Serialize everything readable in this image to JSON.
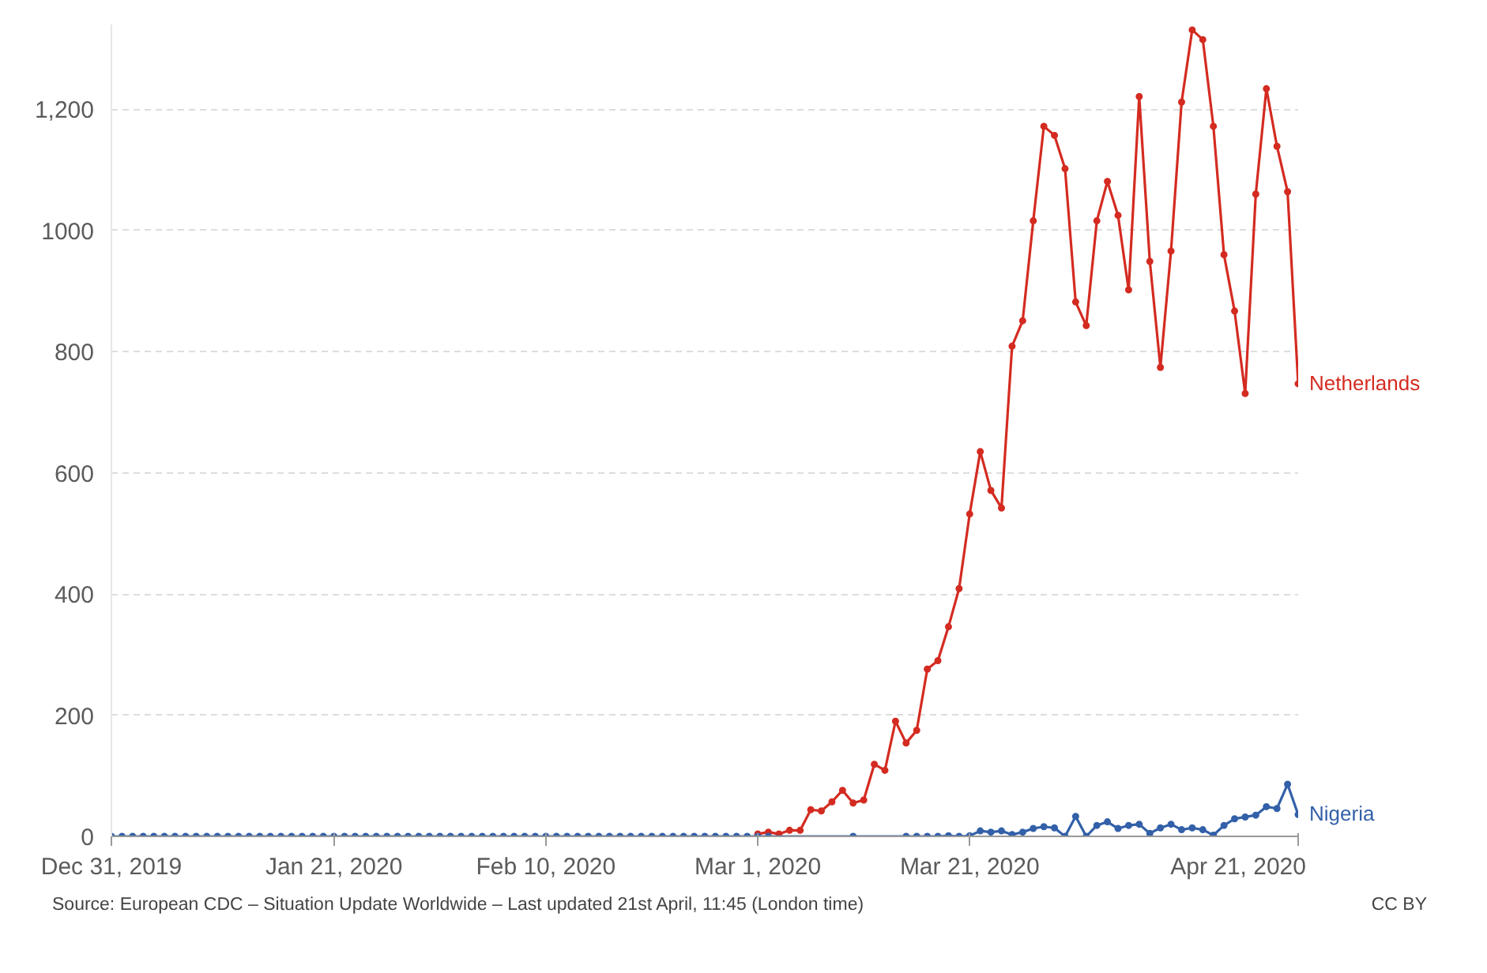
{
  "chart_data": {
    "type": "line",
    "xlim": [
      "2019-12-31",
      "2020-04-21"
    ],
    "ylim": [
      0,
      1340
    ],
    "xticks": [
      {
        "value": "2019-12-31",
        "label": "Dec 31, 2019"
      },
      {
        "value": "2020-01-21",
        "label": "Jan 21, 2020"
      },
      {
        "value": "2020-02-10",
        "label": "Feb 10, 2020"
      },
      {
        "value": "2020-03-01",
        "label": "Mar 1, 2020"
      },
      {
        "value": "2020-03-21",
        "label": "Mar 21, 2020"
      },
      {
        "value": "2020-04-21",
        "label": "Apr 21, 2020"
      }
    ],
    "yticks": [
      0,
      200,
      400,
      600,
      800,
      1000,
      {
        "value": 1200,
        "label": "1,200"
      }
    ],
    "grid": "y",
    "legend": false,
    "marker": "circle",
    "line_style": "solid",
    "annotations": [
      "Source: European CDC – Situation Update Worldwide – Last updated 21st April, 11:45 (London time)",
      "CC BY"
    ],
    "series": [
      {
        "name": "Netherlands",
        "color": "#d42b21",
        "x": [
          "2020-03-01",
          "2020-03-02",
          "2020-03-03",
          "2020-03-04",
          "2020-03-05",
          "2020-03-06",
          "2020-03-07",
          "2020-03-08",
          "2020-03-09",
          "2020-03-10",
          "2020-03-11",
          "2020-03-12",
          "2020-03-13",
          "2020-03-14",
          "2020-03-15",
          "2020-03-16",
          "2020-03-17",
          "2020-03-18",
          "2020-03-19",
          "2020-03-20",
          "2020-03-21",
          "2020-03-22",
          "2020-03-23",
          "2020-03-24",
          "2020-03-25",
          "2020-03-26",
          "2020-03-27",
          "2020-03-28",
          "2020-03-29",
          "2020-03-30",
          "2020-03-31",
          "2020-04-01",
          "2020-04-02",
          "2020-04-03",
          "2020-04-04",
          "2020-04-05",
          "2020-04-06",
          "2020-04-07",
          "2020-04-08",
          "2020-04-09",
          "2020-04-10",
          "2020-04-11",
          "2020-04-12",
          "2020-04-13",
          "2020-04-14",
          "2020-04-15",
          "2020-04-16",
          "2020-04-17",
          "2020-04-18",
          "2020-04-19",
          "2020-04-20",
          "2020-04-21"
        ],
        "values": [
          4,
          7,
          4,
          10,
          10,
          44,
          42,
          57,
          76,
          55,
          60,
          119,
          109,
          190,
          154,
          175,
          276,
          290,
          346,
          409,
          532,
          635,
          571,
          542,
          809,
          851,
          1016,
          1172,
          1157,
          1102,
          882,
          843,
          1016,
          1081,
          1025,
          902,
          1221,
          949,
          774,
          966,
          1212,
          1331,
          1315,
          1172,
          960,
          867,
          731,
          1060,
          1234,
          1139,
          1064,
          747
        ]
      },
      {
        "name": "Nigeria",
        "color": "#3360a9",
        "x": [
          "2019-12-31",
          "2020-01-01",
          "2020-01-02",
          "2020-01-03",
          "2020-01-04",
          "2020-01-05",
          "2020-01-06",
          "2020-01-07",
          "2020-01-08",
          "2020-01-09",
          "2020-01-10",
          "2020-01-11",
          "2020-01-12",
          "2020-01-13",
          "2020-01-14",
          "2020-01-15",
          "2020-01-16",
          "2020-01-17",
          "2020-01-18",
          "2020-01-19",
          "2020-01-20",
          "2020-01-21",
          "2020-01-22",
          "2020-01-23",
          "2020-01-24",
          "2020-01-25",
          "2020-01-26",
          "2020-01-27",
          "2020-01-28",
          "2020-01-29",
          "2020-01-30",
          "2020-01-31",
          "2020-02-01",
          "2020-02-02",
          "2020-02-03",
          "2020-02-04",
          "2020-02-05",
          "2020-02-06",
          "2020-02-07",
          "2020-02-08",
          "2020-02-09",
          "2020-02-10",
          "2020-02-11",
          "2020-02-12",
          "2020-02-13",
          "2020-02-14",
          "2020-02-15",
          "2020-02-16",
          "2020-02-17",
          "2020-02-18",
          "2020-02-19",
          "2020-02-20",
          "2020-02-21",
          "2020-02-22",
          "2020-02-23",
          "2020-02-24",
          "2020-02-25",
          "2020-02-26",
          "2020-02-27",
          "2020-02-28",
          "2020-02-29",
          "2020-03-01",
          "2020-03-02",
          "2020-03-10",
          "2020-03-15",
          "2020-03-16",
          "2020-03-17",
          "2020-03-18",
          "2020-03-19",
          "2020-03-20",
          "2020-03-21",
          "2020-03-22",
          "2020-03-23",
          "2020-03-24",
          "2020-03-25",
          "2020-03-26",
          "2020-03-27",
          "2020-03-28",
          "2020-03-29",
          "2020-03-30",
          "2020-03-31",
          "2020-04-01",
          "2020-04-02",
          "2020-04-03",
          "2020-04-04",
          "2020-04-05",
          "2020-04-06",
          "2020-04-07",
          "2020-04-08",
          "2020-04-09",
          "2020-04-10",
          "2020-04-11",
          "2020-04-12",
          "2020-04-13",
          "2020-04-14",
          "2020-04-15",
          "2020-04-16",
          "2020-04-17",
          "2020-04-18",
          "2020-04-19",
          "2020-04-20",
          "2020-04-21"
        ],
        "values": [
          0,
          0,
          0,
          0,
          0,
          0,
          0,
          0,
          0,
          0,
          0,
          0,
          0,
          0,
          0,
          0,
          0,
          0,
          0,
          0,
          0,
          0,
          0,
          0,
          0,
          0,
          0,
          0,
          0,
          0,
          0,
          0,
          0,
          0,
          0,
          0,
          0,
          0,
          0,
          0,
          0,
          0,
          0,
          0,
          0,
          0,
          0,
          0,
          0,
          0,
          0,
          0,
          0,
          0,
          0,
          0,
          0,
          0,
          0,
          0,
          0,
          0,
          0,
          0,
          0,
          0,
          0,
          0,
          1,
          0,
          1,
          9,
          7,
          9,
          3,
          7,
          13,
          16,
          14,
          0,
          33,
          0,
          18,
          24,
          13,
          18,
          20,
          5,
          14,
          20,
          11,
          14,
          11,
          2,
          18,
          29,
          32,
          35,
          49,
          46,
          86,
          36
        ]
      }
    ]
  }
}
